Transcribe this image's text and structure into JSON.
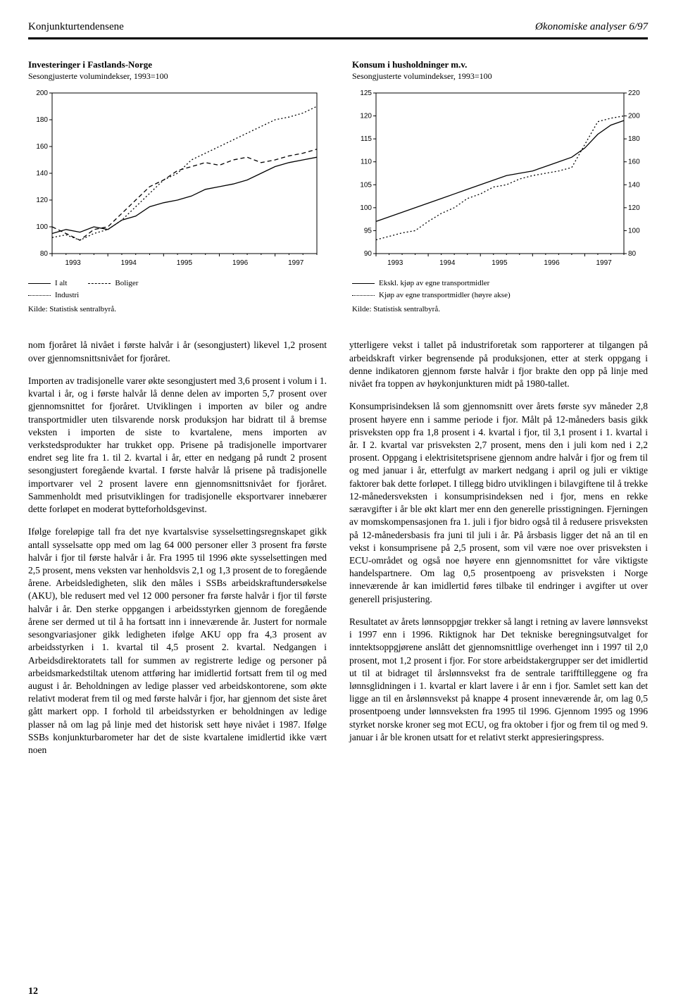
{
  "header": {
    "left": "Konjunkturtendensene",
    "right": "Økonomiske analyser 6/97"
  },
  "chart_left": {
    "title": "Investeringer i Fastlands-Norge",
    "subtitle": "Sesongjusterte volumindekser, 1993=100",
    "type": "line",
    "x_categories": [
      "1993",
      "1994",
      "1995",
      "1996",
      "1997"
    ],
    "y_ticks": [
      80,
      100,
      120,
      140,
      160,
      180,
      200
    ],
    "ylim": [
      80,
      200
    ],
    "background_color": "#ffffff",
    "axis_color": "#000000",
    "tick_fontsize": 10,
    "series": [
      {
        "name": "I alt",
        "style": "solid",
        "color": "#000000",
        "values": [
          95,
          98,
          96,
          100,
          98,
          105,
          108,
          115,
          118,
          120,
          123,
          128,
          130,
          132,
          135,
          140,
          145,
          148,
          150,
          152
        ]
      },
      {
        "name": "Boliger",
        "style": "dashed",
        "color": "#000000",
        "values": [
          100,
          95,
          90,
          98,
          100,
          110,
          120,
          130,
          135,
          142,
          145,
          148,
          146,
          150,
          152,
          148,
          150,
          153,
          155,
          158
        ]
      },
      {
        "name": "Industri",
        "style": "dotted",
        "color": "#000000",
        "values": [
          92,
          94,
          90,
          95,
          98,
          105,
          115,
          125,
          135,
          140,
          150,
          155,
          160,
          165,
          170,
          175,
          180,
          182,
          185,
          190
        ]
      }
    ],
    "legend": [
      {
        "swatch": "solid",
        "label": "I alt"
      },
      {
        "swatch": "dashed",
        "label": "Boliger"
      },
      {
        "swatch": "dotted",
        "label": "Industri"
      }
    ],
    "source": "Kilde: Statistisk sentralbyrå."
  },
  "chart_right": {
    "title": "Konsum i husholdninger m.v.",
    "subtitle": "Sesongjusterte volumindekser, 1993=100",
    "type": "line-dual-axis",
    "x_categories": [
      "1993",
      "1994",
      "1995",
      "1996",
      "1997"
    ],
    "left_y_ticks": [
      90,
      95,
      100,
      105,
      110,
      115,
      120,
      125
    ],
    "right_y_ticks": [
      80,
      100,
      120,
      140,
      160,
      180,
      200,
      220
    ],
    "left_ylim": [
      90,
      125
    ],
    "right_ylim": [
      80,
      220
    ],
    "background_color": "#ffffff",
    "axis_color": "#000000",
    "tick_fontsize": 10,
    "series": [
      {
        "name": "Ekskl. kjøp av egne transportmidler",
        "axis": "left",
        "style": "solid",
        "color": "#000000",
        "values": [
          97,
          98,
          99,
          100,
          101,
          102,
          103,
          104,
          105,
          106,
          107,
          107.5,
          108,
          109,
          110,
          111,
          113,
          116,
          118,
          119
        ]
      },
      {
        "name": "Kjøp av egne transportmidler (høyre akse)",
        "axis": "right",
        "style": "dotted",
        "color": "#000000",
        "values": [
          92,
          95,
          98,
          100,
          108,
          115,
          120,
          128,
          132,
          138,
          140,
          145,
          148,
          150,
          152,
          155,
          175,
          195,
          198,
          200
        ]
      }
    ],
    "legend": [
      {
        "swatch": "solid",
        "label": "Ekskl. kjøp av egne transportmidler"
      },
      {
        "swatch": "dotted",
        "label": "Kjøp av egne transportmidler (høyre akse)"
      }
    ],
    "source": "Kilde: Statistisk sentralbyrå."
  },
  "body": {
    "p1": "nom fjoråret lå nivået i første halvår i år (sesongjustert) likevel 1,2 prosent over gjennomsnittsnivået for fjoråret.",
    "p2": "Importen av tradisjonelle varer økte sesongjustert med 3,6 prosent i volum i 1. kvartal i år, og i første halvår lå denne delen av importen 5,7 prosent over gjennomsnittet for fjoråret. Utviklingen i importen av biler og andre transportmidler uten tilsvarende norsk produksjon har bidratt til å bremse veksten i importen de siste to kvartalene, mens importen av verkstedsprodukter har trukket opp. Prisene på tradisjonelle importvarer endret seg lite fra 1. til 2. kvartal i år, etter en nedgang på rundt 2 prosent sesongjustert foregående kvartal. I første halvår lå prisene på tradisjonelle importvarer vel 2 prosent lavere enn gjennomsnittsnivået for fjoråret. Sammenholdt med prisutviklingen for tradisjonelle eksportvarer innebærer dette forløpet en moderat bytteforholdsgevinst.",
    "p3": "Ifølge foreløpige tall fra det nye kvartalsvise sysselsettingsregnskapet gikk antall sysselsatte opp med om lag 64 000 personer eller 3 prosent fra første halvår i fjor til første halvår i år. Fra 1995 til 1996 økte sysselsettingen med 2,5 prosent, mens veksten var henholdsvis 2,1 og 1,3 prosent de to foregående årene. Arbeidsledigheten, slik den måles i SSBs arbeidskraftundersøkelse (AKU), ble redusert med vel 12 000 personer fra første halvår i fjor til første halvår i år. Den sterke oppgangen i arbeidsstyrken gjennom de foregående årene ser dermed ut til å ha fortsatt inn i inneværende år. Justert for normale sesongvariasjoner gikk ledigheten ifølge AKU opp fra 4,3 prosent av arbeidsstyrken i 1. kvartal til 4,5 prosent 2. kvartal. Nedgangen i Arbeidsdirektoratets tall for summen av registrerte ledige og personer på arbeidsmarkedstiltak utenom attføring har imidlertid fortsatt frem til og med august i år. Beholdningen av ledige plasser ved arbeidskontorene, som økte relativt moderat frem til og med første halvår i fjor, har gjennom det siste året gått markert opp. I forhold til arbeidsstyrken er beholdningen av ledige plasser nå om lag på linje med det historisk sett høye nivået i 1987. Ifølge SSBs konjunkturbarometer har det de siste kvartalene imidlertid ikke vært noen",
    "p4": "ytterligere vekst i tallet på industriforetak som rapporterer at tilgangen på arbeidskraft virker begrensende på produksjonen, etter at sterk oppgang i denne indikatoren gjennom første halvår i fjor brakte den opp på linje med nivået fra toppen av høykonjunkturen midt på 1980-tallet.",
    "p5": "Konsumprisindeksen lå som gjennomsnitt over årets første syv måneder 2,8 prosent høyere enn i samme periode i fjor. Målt på 12-måneders basis gikk prisveksten opp fra 1,8 prosent i 4. kvartal i fjor, til 3,1 prosent i 1. kvartal i år. I 2. kvartal var prisveksten 2,7 prosent, mens den i juli kom ned i 2,2 prosent. Oppgang i elektrisitetsprisene gjennom andre halvår i fjor og frem til og med januar i år, etterfulgt av markert nedgang i april og juli er viktige faktorer bak dette forløpet. I tillegg bidro utviklingen i bilavgiftene til å trekke 12-månedersveksten i konsumprisindeksen ned i fjor, mens en rekke særavgifter i år ble økt klart mer enn den generelle prisstigningen. Fjerningen av momskompensasjonen fra 1. juli i fjor bidro også til å redusere prisveksten på 12-månedersbasis fra juni til juli i år. På årsbasis ligger det nå an til en vekst i konsumprisene på 2,5 prosent, som vil være noe over prisveksten i ECU-området og også noe høyere enn gjennomsnittet for våre viktigste handelspartnere. Om lag 0,5 prosentpoeng av prisveksten i Norge inneværende år kan imidlertid føres tilbake til endringer i avgifter ut over generell prisjustering.",
    "p6": "Resultatet av årets lønnsoppgjør trekker så langt i retning av lavere lønnsvekst i 1997 enn i 1996. Riktignok har Det tekniske beregningsutvalget for inntektsoppgjørene anslått det gjennomsnittlige overhenget inn i 1997 til 2,0 prosent, mot 1,2 prosent i fjor. For store arbeidstakergrupper ser det imidlertid ut til at bidraget til årslønnsvekst fra de sentrale tarifftilleggene og fra lønnsglidningen i 1. kvartal er klart lavere i år enn i fjor. Samlet sett kan det ligge an til en årslønnsvekst på knappe 4 prosent inneværende år, om lag 0,5 prosentpoeng under lønnsveksten fra 1995 til 1996. Gjennom 1995 og 1996 styrket norske kroner seg mot ECU, og fra oktober i fjor og frem til og med 9. januar i år ble kronen utsatt for et relativt sterkt appresieringspress."
  },
  "page_number": "12"
}
